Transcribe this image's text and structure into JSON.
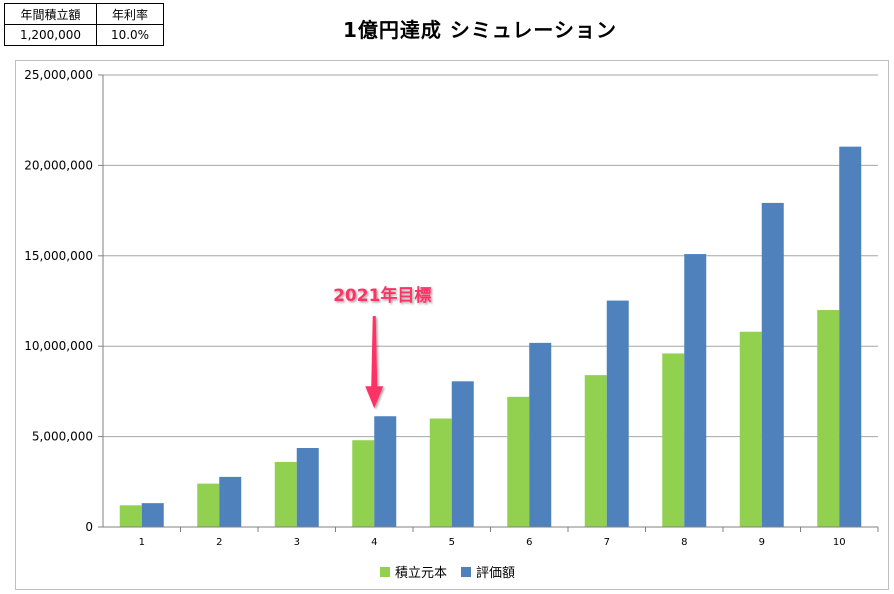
{
  "params": {
    "headers": [
      "年間積立額",
      "年利率"
    ],
    "values": [
      "1,200,000",
      "10.0%"
    ]
  },
  "annotation": {
    "text": "2021年目標",
    "color": "#FF3366",
    "target_category": "4"
  },
  "colors": {
    "principal": "#92D050",
    "valuation": "#4F81BD",
    "gridline": "#A6A6A6"
  },
  "chart_data": {
    "type": "bar",
    "title": "1億円達成 シミュレーション",
    "xlabel": "",
    "ylabel": "",
    "categories": [
      "1",
      "2",
      "3",
      "4",
      "5",
      "6",
      "7",
      "8",
      "9",
      "10"
    ],
    "series": [
      {
        "name": "積立元本",
        "values": [
          1200000,
          2400000,
          3600000,
          4800000,
          6000000,
          7200000,
          8400000,
          9600000,
          10800000,
          12000000
        ]
      },
      {
        "name": "評価額",
        "values": [
          1320000,
          2772000,
          4369200,
          6126120,
          8058732,
          10184605,
          12523066,
          15095372,
          17924910,
          21037401
        ]
      }
    ],
    "ylim": [
      0,
      25000000
    ],
    "yticks": [
      "0",
      "5,000,000",
      "10,000,000",
      "15,000,000",
      "20,000,000",
      "25,000,000"
    ],
    "grid": true,
    "legend_position": "bottom"
  }
}
